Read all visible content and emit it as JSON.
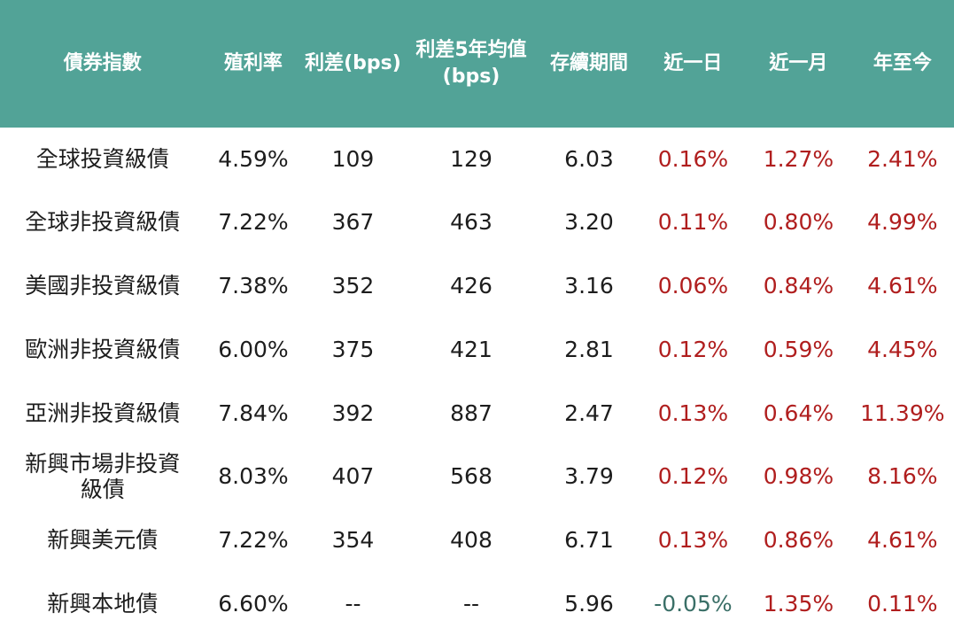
{
  "colors": {
    "header_bg": "#52a397",
    "header_text": "#ffffff",
    "body_text": "#1d1d1d",
    "positive_change": "#b01e1e",
    "negative_change": "#3a6f67"
  },
  "table": {
    "columns": [
      "債券指數",
      "殖利率",
      "利差(bps)",
      "利差5年均值\n(bps)",
      "存續期間",
      "近一日",
      "近一月",
      "年至今"
    ],
    "rows": [
      [
        "全球投資級債",
        "4.59%",
        "109",
        "129",
        "6.03",
        "0.16%",
        "1.27%",
        "2.41%"
      ],
      [
        "全球非投資級債",
        "7.22%",
        "367",
        "463",
        "3.20",
        "0.11%",
        "0.80%",
        "4.99%"
      ],
      [
        "美國非投資級債",
        "7.38%",
        "352",
        "426",
        "3.16",
        "0.06%",
        "0.84%",
        "4.61%"
      ],
      [
        "歐洲非投資級債",
        "6.00%",
        "375",
        "421",
        "2.81",
        "0.12%",
        "0.59%",
        "4.45%"
      ],
      [
        "亞洲非投資級債",
        "7.84%",
        "392",
        "887",
        "2.47",
        "0.13%",
        "0.64%",
        "11.39%"
      ],
      [
        "新興市場非投資\n級債",
        "8.03%",
        "407",
        "568",
        "3.79",
        "0.12%",
        "0.98%",
        "8.16%"
      ],
      [
        "新興美元債",
        "7.22%",
        "354",
        "408",
        "6.71",
        "0.13%",
        "0.86%",
        "4.61%"
      ],
      [
        "新興本地債",
        "6.60%",
        "--",
        "--",
        "5.96",
        "-0.05%",
        "1.35%",
        "0.11%"
      ]
    ]
  }
}
